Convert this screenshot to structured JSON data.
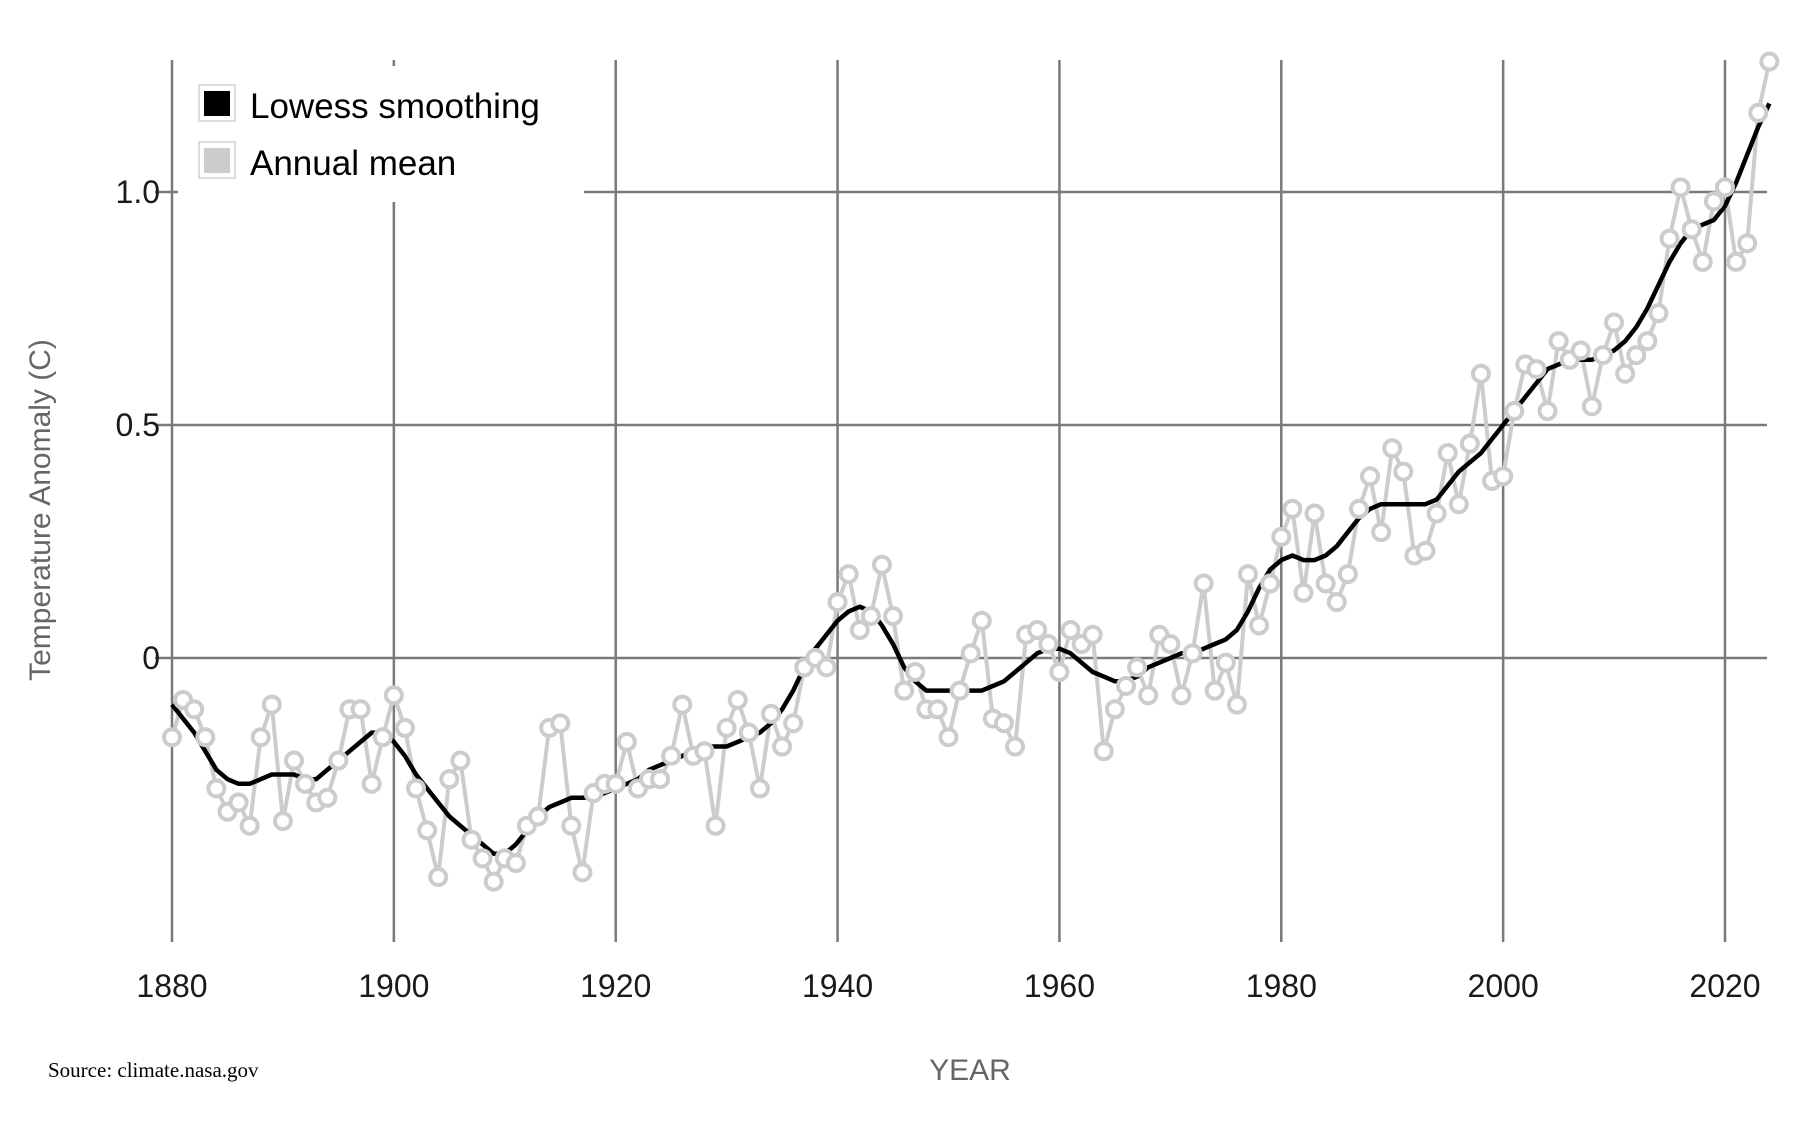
{
  "chart_data": {
    "type": "line",
    "title": "",
    "xlabel": "YEAR",
    "ylabel": "Temperature Anomaly (C)",
    "xlim": [
      1880,
      2024
    ],
    "ylim": [
      -0.6,
      1.3
    ],
    "x_ticks": [
      1880,
      1900,
      1920,
      1940,
      1960,
      1980,
      2000,
      2020
    ],
    "x_tick_labels": [
      "1880",
      "1900",
      "1920",
      "1940",
      "1960",
      "1980",
      "2000",
      "2020"
    ],
    "y_ticks": [
      0,
      0.5,
      1.0
    ],
    "y_tick_labels": [
      "0",
      "0.5",
      "1.0"
    ],
    "grid": true,
    "legend_position": "top-left",
    "legend": [
      "Lowess smoothing",
      "Annual mean"
    ],
    "x_start": 1880,
    "series": [
      {
        "name": "Annual mean",
        "color": "#cccccc",
        "values": [
          -0.17,
          -0.09,
          -0.11,
          -0.17,
          -0.28,
          -0.33,
          -0.31,
          -0.36,
          -0.17,
          -0.1,
          -0.35,
          -0.22,
          -0.27,
          -0.31,
          -0.3,
          -0.22,
          -0.11,
          -0.11,
          -0.27,
          -0.17,
          -0.08,
          -0.15,
          -0.28,
          -0.37,
          -0.47,
          -0.26,
          -0.22,
          -0.39,
          -0.43,
          -0.48,
          -0.43,
          -0.44,
          -0.36,
          -0.34,
          -0.15,
          -0.14,
          -0.36,
          -0.46,
          -0.29,
          -0.27,
          -0.27,
          -0.18,
          -0.28,
          -0.26,
          -0.26,
          -0.21,
          -0.1,
          -0.21,
          -0.2,
          -0.36,
          -0.15,
          -0.09,
          -0.16,
          -0.28,
          -0.12,
          -0.19,
          -0.14,
          -0.02,
          0.0,
          -0.02,
          0.12,
          0.18,
          0.06,
          0.09,
          0.2,
          0.09,
          -0.07,
          -0.03,
          -0.11,
          -0.11,
          -0.17,
          -0.07,
          0.01,
          0.08,
          -0.13,
          -0.14,
          -0.19,
          0.05,
          0.06,
          0.03,
          -0.03,
          0.06,
          0.03,
          0.05,
          -0.2,
          -0.11,
          -0.06,
          -0.02,
          -0.08,
          0.05,
          0.03,
          -0.08,
          0.01,
          0.16,
          -0.07,
          -0.01,
          -0.1,
          0.18,
          0.07,
          0.16,
          0.26,
          0.32,
          0.14,
          0.31,
          0.16,
          0.12,
          0.18,
          0.32,
          0.39,
          0.27,
          0.45,
          0.4,
          0.22,
          0.23,
          0.31,
          0.44,
          0.33,
          0.46,
          0.61,
          0.38,
          0.39,
          0.53,
          0.63,
          0.62,
          0.53,
          0.68,
          0.64,
          0.66,
          0.54,
          0.65,
          0.72,
          0.61,
          0.65,
          0.68,
          0.74,
          0.9,
          1.01,
          0.92,
          0.85,
          0.98,
          1.01,
          0.85,
          0.89,
          1.17,
          1.28
        ]
      },
      {
        "name": "Lowess smoothing",
        "color": "#000000",
        "values": [
          -0.1,
          -0.13,
          -0.16,
          -0.2,
          -0.24,
          -0.26,
          -0.27,
          -0.27,
          -0.26,
          -0.25,
          -0.25,
          -0.25,
          -0.26,
          -0.26,
          -0.24,
          -0.22,
          -0.2,
          -0.18,
          -0.16,
          -0.16,
          -0.18,
          -0.21,
          -0.25,
          -0.28,
          -0.31,
          -0.34,
          -0.36,
          -0.38,
          -0.4,
          -0.42,
          -0.42,
          -0.4,
          -0.37,
          -0.34,
          -0.32,
          -0.31,
          -0.3,
          -0.3,
          -0.3,
          -0.29,
          -0.28,
          -0.27,
          -0.26,
          -0.24,
          -0.23,
          -0.22,
          -0.21,
          -0.2,
          -0.19,
          -0.19,
          -0.19,
          -0.18,
          -0.17,
          -0.16,
          -0.14,
          -0.11,
          -0.07,
          -0.02,
          0.02,
          0.05,
          0.08,
          0.1,
          0.11,
          0.1,
          0.07,
          0.03,
          -0.02,
          -0.05,
          -0.07,
          -0.07,
          -0.07,
          -0.07,
          -0.07,
          -0.07,
          -0.06,
          -0.05,
          -0.03,
          -0.01,
          0.01,
          0.02,
          0.02,
          0.01,
          -0.01,
          -0.03,
          -0.04,
          -0.05,
          -0.05,
          -0.04,
          -0.02,
          -0.01,
          0.0,
          0.01,
          0.01,
          0.02,
          0.03,
          0.04,
          0.06,
          0.1,
          0.15,
          0.19,
          0.21,
          0.22,
          0.21,
          0.21,
          0.22,
          0.24,
          0.27,
          0.3,
          0.32,
          0.33,
          0.33,
          0.33,
          0.33,
          0.33,
          0.34,
          0.37,
          0.4,
          0.42,
          0.44,
          0.47,
          0.5,
          0.53,
          0.56,
          0.59,
          0.62,
          0.63,
          0.64,
          0.64,
          0.64,
          0.65,
          0.66,
          0.68,
          0.71,
          0.75,
          0.8,
          0.85,
          0.89,
          0.92,
          0.93,
          0.94,
          0.97,
          1.02,
          1.08,
          1.14,
          1.19
        ]
      }
    ]
  },
  "source": "Source: climate.nasa.gov"
}
